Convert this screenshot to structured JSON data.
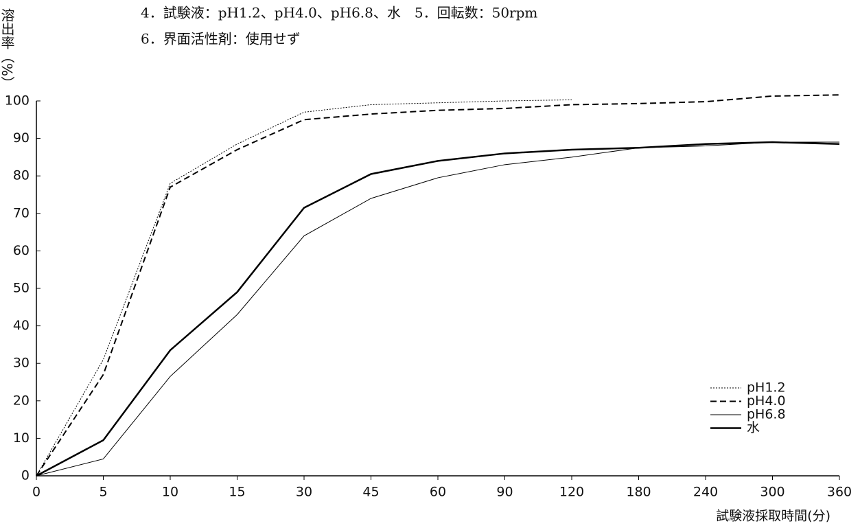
{
  "chart_data": {
    "type": "line",
    "notes": [
      "4．試験液：pH1.2、pH4.0、pH6.8、水　5．回転数：50rpm",
      "6．界面活性剤：使用せず"
    ],
    "y_label": "溶出率（%）",
    "x_label": "試験液採取時間(分)",
    "categories": [
      "0",
      "5",
      "10",
      "15",
      "30",
      "45",
      "60",
      "90",
      "120",
      "180",
      "240",
      "300",
      "360"
    ],
    "series": [
      {
        "name": "pH1.2",
        "color": "#000000",
        "style": "dotted",
        "width": 1,
        "values": [
          0,
          31,
          78,
          88.5,
          97,
          99,
          99.5,
          100,
          100.3,
          null,
          null,
          null,
          null
        ]
      },
      {
        "name": "pH4.0",
        "color": "#000000",
        "style": "dashed",
        "width": 2,
        "values": [
          0,
          27,
          77,
          87,
          95,
          96.5,
          97.5,
          98,
          99,
          99.3,
          99.8,
          101.3,
          101.6
        ]
      },
      {
        "name": "pH6.8",
        "color": "#000000",
        "style": "solid",
        "width": 1,
        "values": [
          0,
          4.5,
          26.5,
          43,
          64,
          74,
          79.5,
          83,
          85,
          87.5,
          88,
          89,
          89
        ]
      },
      {
        "name": "水",
        "color": "#000000",
        "style": "solid",
        "width": 2.5,
        "values": [
          0,
          9.5,
          33.5,
          49,
          71.5,
          80.5,
          84,
          86,
          87,
          87.5,
          88.5,
          89,
          88.5
        ]
      }
    ],
    "ylim": [
      0,
      100
    ],
    "yticks": [
      0,
      10,
      20,
      30,
      40,
      50,
      60,
      70,
      80,
      90,
      100
    ],
    "grid": false,
    "legend": "lower right"
  }
}
